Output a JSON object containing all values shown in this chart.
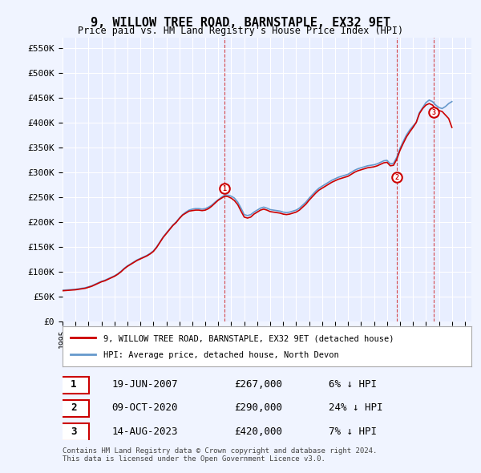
{
  "title": "9, WILLOW TREE ROAD, BARNSTAPLE, EX32 9ET",
  "subtitle": "Price paid vs. HM Land Registry's House Price Index (HPI)",
  "ylabel_ticks": [
    "£0",
    "£50K",
    "£100K",
    "£150K",
    "£200K",
    "£250K",
    "£300K",
    "£350K",
    "£400K",
    "£450K",
    "£500K",
    "£550K"
  ],
  "ytick_values": [
    0,
    50000,
    100000,
    150000,
    200000,
    250000,
    300000,
    350000,
    400000,
    450000,
    500000,
    550000
  ],
  "xlim_start": 1995.0,
  "xlim_end": 2026.5,
  "ylim_min": 0,
  "ylim_max": 570000,
  "hpi_color": "#6699cc",
  "price_color": "#cc0000",
  "transaction_color": "#cc0000",
  "background_color": "#f0f4ff",
  "plot_bg_color": "#e8eeff",
  "grid_color": "#ffffff",
  "legend_label_price": "9, WILLOW TREE ROAD, BARNSTAPLE, EX32 9ET (detached house)",
  "legend_label_hpi": "HPI: Average price, detached house, North Devon",
  "transactions": [
    {
      "label": "1",
      "date": 2007.47,
      "price": 267000,
      "pct": "6%",
      "date_str": "19-JUN-2007",
      "price_str": "£267,000"
    },
    {
      "label": "2",
      "date": 2020.78,
      "price": 290000,
      "pct": "24%",
      "date_str": "09-OCT-2020",
      "price_str": "£290,000"
    },
    {
      "label": "3",
      "date": 2023.62,
      "price": 420000,
      "pct": "7%",
      "date_str": "14-AUG-2023",
      "price_str": "£420,000"
    }
  ],
  "footer": "Contains HM Land Registry data © Crown copyright and database right 2024.\nThis data is licensed under the Open Government Licence v3.0.",
  "hpi_data": {
    "x": [
      1995.0,
      1995.25,
      1995.5,
      1995.75,
      1996.0,
      1996.25,
      1996.5,
      1996.75,
      1997.0,
      1997.25,
      1997.5,
      1997.75,
      1998.0,
      1998.25,
      1998.5,
      1998.75,
      1999.0,
      1999.25,
      1999.5,
      1999.75,
      2000.0,
      2000.25,
      2000.5,
      2000.75,
      2001.0,
      2001.25,
      2001.5,
      2001.75,
      2002.0,
      2002.25,
      2002.5,
      2002.75,
      2003.0,
      2003.25,
      2003.5,
      2003.75,
      2004.0,
      2004.25,
      2004.5,
      2004.75,
      2005.0,
      2005.25,
      2005.5,
      2005.75,
      2006.0,
      2006.25,
      2006.5,
      2006.75,
      2007.0,
      2007.25,
      2007.5,
      2007.75,
      2008.0,
      2008.25,
      2008.5,
      2008.75,
      2009.0,
      2009.25,
      2009.5,
      2009.75,
      2010.0,
      2010.25,
      2010.5,
      2010.75,
      2011.0,
      2011.25,
      2011.5,
      2011.75,
      2012.0,
      2012.25,
      2012.5,
      2012.75,
      2013.0,
      2013.25,
      2013.5,
      2013.75,
      2014.0,
      2014.25,
      2014.5,
      2014.75,
      2015.0,
      2015.25,
      2015.5,
      2015.75,
      2016.0,
      2016.25,
      2016.5,
      2016.75,
      2017.0,
      2017.25,
      2017.5,
      2017.75,
      2018.0,
      2018.25,
      2018.5,
      2018.75,
      2019.0,
      2019.25,
      2019.5,
      2019.75,
      2020.0,
      2020.25,
      2020.5,
      2020.75,
      2021.0,
      2021.25,
      2021.5,
      2021.75,
      2022.0,
      2022.25,
      2022.5,
      2022.75,
      2023.0,
      2023.25,
      2023.5,
      2023.75,
      2024.0,
      2024.25,
      2024.5,
      2024.75,
      2025.0
    ],
    "y": [
      63000,
      63500,
      64000,
      64500,
      65000,
      66000,
      67000,
      68000,
      70000,
      72000,
      75000,
      78000,
      81000,
      83000,
      86000,
      89000,
      92000,
      96000,
      101000,
      107000,
      112000,
      116000,
      120000,
      124000,
      127000,
      130000,
      133000,
      137000,
      142000,
      150000,
      160000,
      170000,
      178000,
      186000,
      194000,
      200000,
      208000,
      215000,
      220000,
      224000,
      226000,
      227000,
      227000,
      226000,
      227000,
      230000,
      234000,
      240000,
      245000,
      250000,
      254000,
      254000,
      252000,
      248000,
      240000,
      228000,
      215000,
      213000,
      215000,
      220000,
      224000,
      228000,
      230000,
      228000,
      225000,
      224000,
      223000,
      222000,
      220000,
      219000,
      220000,
      222000,
      224000,
      228000,
      234000,
      240000,
      248000,
      255000,
      262000,
      268000,
      272000,
      276000,
      280000,
      284000,
      287000,
      290000,
      292000,
      294000,
      296000,
      300000,
      304000,
      307000,
      309000,
      311000,
      313000,
      314000,
      315000,
      317000,
      320000,
      323000,
      324000,
      317000,
      318000,
      330000,
      348000,
      362000,
      375000,
      385000,
      393000,
      400000,
      420000,
      430000,
      440000,
      445000,
      442000,
      435000,
      430000,
      428000,
      432000,
      438000,
      442000
    ]
  },
  "price_data": {
    "x": [
      1995.0,
      1995.25,
      1995.5,
      1995.75,
      1996.0,
      1996.25,
      1996.5,
      1996.75,
      1997.0,
      1997.25,
      1997.5,
      1997.75,
      1998.0,
      1998.25,
      1998.5,
      1998.75,
      1999.0,
      1999.25,
      1999.5,
      1999.75,
      2000.0,
      2000.25,
      2000.5,
      2000.75,
      2001.0,
      2001.25,
      2001.5,
      2001.75,
      2002.0,
      2002.25,
      2002.5,
      2002.75,
      2003.0,
      2003.25,
      2003.5,
      2003.75,
      2004.0,
      2004.25,
      2004.5,
      2004.75,
      2005.0,
      2005.25,
      2005.5,
      2005.75,
      2006.0,
      2006.25,
      2006.5,
      2006.75,
      2007.0,
      2007.25,
      2007.5,
      2007.75,
      2008.0,
      2008.25,
      2008.5,
      2008.75,
      2009.0,
      2009.25,
      2009.5,
      2009.75,
      2010.0,
      2010.25,
      2010.5,
      2010.75,
      2011.0,
      2011.25,
      2011.5,
      2011.75,
      2012.0,
      2012.25,
      2012.5,
      2012.75,
      2013.0,
      2013.25,
      2013.5,
      2013.75,
      2014.0,
      2014.25,
      2014.5,
      2014.75,
      2015.0,
      2015.25,
      2015.5,
      2015.75,
      2016.0,
      2016.25,
      2016.5,
      2016.75,
      2017.0,
      2017.25,
      2017.5,
      2017.75,
      2018.0,
      2018.25,
      2018.5,
      2018.75,
      2019.0,
      2019.25,
      2019.5,
      2019.75,
      2020.0,
      2020.25,
      2020.5,
      2020.75,
      2021.0,
      2021.25,
      2021.5,
      2021.75,
      2022.0,
      2022.25,
      2022.5,
      2022.75,
      2023.0,
      2023.25,
      2023.5,
      2023.75,
      2024.0,
      2024.25,
      2024.5,
      2024.75,
      2025.0
    ],
    "y": [
      62000,
      62500,
      63000,
      63500,
      64000,
      65000,
      66000,
      67000,
      69000,
      71000,
      74000,
      77000,
      80000,
      82000,
      85000,
      88000,
      91000,
      95000,
      100000,
      106000,
      111000,
      115000,
      119000,
      123000,
      126000,
      129000,
      132000,
      136000,
      141000,
      149000,
      159000,
      169000,
      177000,
      185000,
      193000,
      199000,
      207000,
      214000,
      218000,
      222000,
      223000,
      224000,
      224000,
      223000,
      224000,
      227000,
      232000,
      238000,
      244000,
      248000,
      252000,
      251000,
      248000,
      243000,
      235000,
      222000,
      210000,
      208000,
      210000,
      216000,
      220000,
      224000,
      226000,
      224000,
      221000,
      220000,
      219000,
      218000,
      216000,
      215000,
      216000,
      218000,
      220000,
      224000,
      230000,
      236000,
      244000,
      251000,
      258000,
      264000,
      268000,
      272000,
      276000,
      280000,
      283000,
      286000,
      288000,
      290000,
      292000,
      296000,
      300000,
      303000,
      305000,
      307000,
      309000,
      310000,
      311000,
      313000,
      316000,
      319000,
      320000,
      313000,
      314000,
      326000,
      344000,
      358000,
      371000,
      381000,
      390000,
      400000,
      418000,
      428000,
      435000,
      438000,
      435000,
      428000,
      424000,
      422000,
      415000,
      408000,
      390000
    ]
  }
}
